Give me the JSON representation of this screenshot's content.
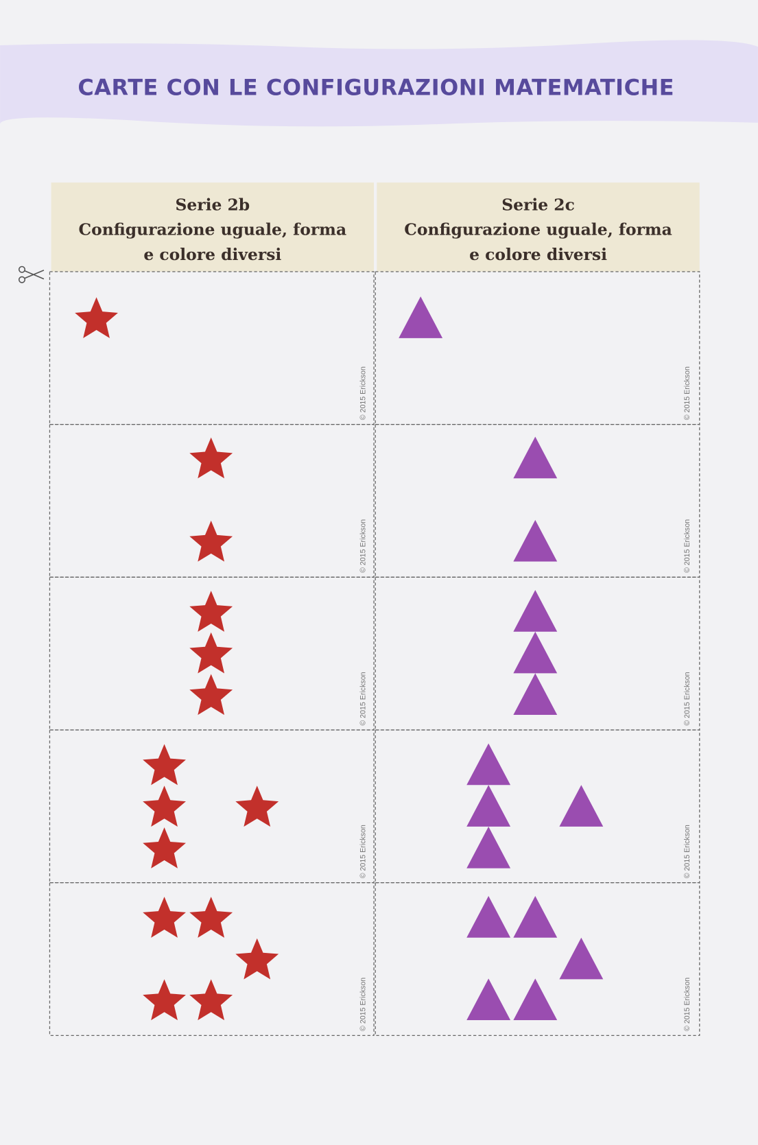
{
  "header": {
    "title": "CARTE CON LE CONFIGURAZIONI MATEMATICHE"
  },
  "columns": [
    {
      "heading": [
        "Serie 2b",
        "Configurazione uguale, forma",
        "e colore diversi"
      ],
      "cards": [
        "© 2015 Erickson",
        "© 2015 Erickson",
        "© 2015 Erickson",
        "© 2015 Erickson",
        "© 2015 Erickson"
      ]
    },
    {
      "heading": [
        "Serie 2c",
        "Configurazione uguale, forma",
        "e colore diversi"
      ],
      "cards": [
        "© 2015 Erickson",
        "© 2015 Erickson",
        "© 2015 Erickson",
        "© 2015 Erickson",
        "© 2015 Erickson"
      ]
    }
  ]
}
